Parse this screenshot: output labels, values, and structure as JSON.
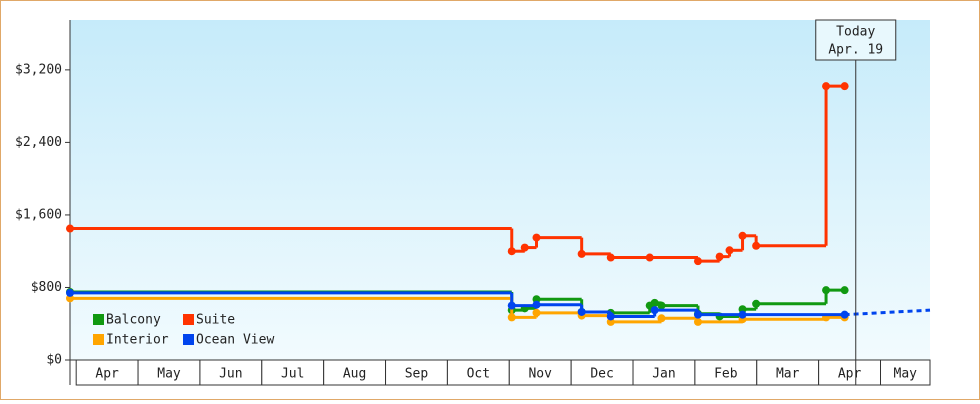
{
  "chart_data": {
    "type": "step",
    "categories": [
      "Apr",
      "May",
      "Jun",
      "Jul",
      "Aug",
      "Sep",
      "Oct",
      "Nov",
      "Dec",
      "Jan",
      "Feb",
      "Mar",
      "Apr",
      "May"
    ],
    "xlim": [
      -0.1,
      13.8
    ],
    "ylim": [
      0,
      3750
    ],
    "yticks": [
      {
        "value": 0,
        "label": "$0"
      },
      {
        "value": 800,
        "label": "$800"
      },
      {
        "value": 1600,
        "label": "$1,600"
      },
      {
        "value": 2400,
        "label": "$2,400"
      },
      {
        "value": 3200,
        "label": "$3,200"
      }
    ],
    "series": [
      {
        "name": "Balcony",
        "color": "#119911",
        "x": [
          -0.1,
          7.04,
          7.25,
          7.44,
          8.17,
          8.64,
          9.27,
          9.35,
          9.46,
          10.05,
          10.4,
          10.77,
          10.99,
          12.12,
          12.42
        ],
        "values": [
          750,
          550,
          570,
          670,
          530,
          520,
          600,
          630,
          600,
          510,
          480,
          560,
          620,
          770,
          770
        ]
      },
      {
        "name": "Suite",
        "color": "#ff3300",
        "x": [
          -0.1,
          7.04,
          7.25,
          7.44,
          8.17,
          8.64,
          9.27,
          10.05,
          10.4,
          10.56,
          10.77,
          10.99,
          12.12,
          12.42
        ],
        "values": [
          1450,
          1200,
          1240,
          1350,
          1170,
          1130,
          1130,
          1090,
          1140,
          1210,
          1370,
          1260,
          3020,
          3020
        ]
      },
      {
        "name": "Interior",
        "color": "#ffa500",
        "x": [
          -0.1,
          7.04,
          7.44,
          8.17,
          8.64,
          9.46,
          10.05,
          10.77,
          12.12,
          12.42
        ],
        "values": [
          680,
          470,
          520,
          490,
          420,
          460,
          420,
          450,
          470,
          470
        ]
      },
      {
        "name": "Ocean View",
        "color": "#0044ee",
        "x": [
          -0.1,
          7.04,
          7.44,
          8.17,
          8.64,
          9.35,
          10.05,
          10.77,
          12.42
        ],
        "values": [
          740,
          600,
          610,
          530,
          480,
          550,
          500,
          500,
          500
        ],
        "forecast_x": [
          12.42,
          13.8
        ],
        "forecast_values": [
          500,
          550
        ]
      }
    ],
    "today": {
      "x": 12.6,
      "label": "Today",
      "date": "Apr. 19"
    }
  }
}
